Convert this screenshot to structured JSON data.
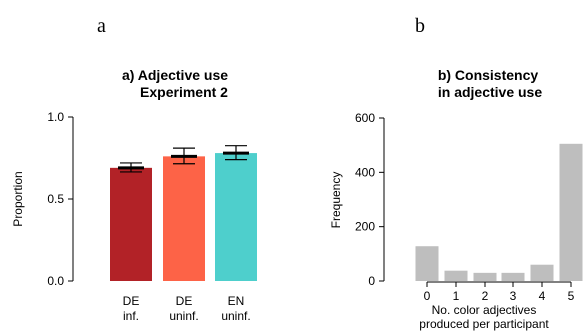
{
  "panel_labels": [
    "a",
    "b"
  ],
  "chart_data": [
    {
      "type": "bar",
      "title_lines": [
        "a) Adjective use",
        "Experiment 2"
      ],
      "ylabel": "Proportion",
      "ylim": [
        0,
        1
      ],
      "yticks": [
        "0.0",
        "0.5",
        "1.0"
      ],
      "yticks_values": [
        0,
        0.5,
        1
      ],
      "categories": [
        {
          "lines": [
            "DE",
            "inf."
          ],
          "value": 0.69,
          "err_low": 0.665,
          "err_high": 0.72,
          "color": "#b22227"
        },
        {
          "lines": [
            "DE",
            "uninf."
          ],
          "value": 0.76,
          "err_low": 0.715,
          "err_high": 0.81,
          "color": "#fd6347"
        },
        {
          "lines": [
            "EN",
            "uninf."
          ],
          "value": 0.78,
          "err_low": 0.74,
          "err_high": 0.825,
          "color": "#4ecfcc"
        }
      ]
    },
    {
      "type": "bar",
      "title_lines": [
        "b) Consistency",
        "in adjective use"
      ],
      "ylabel": "Frequency",
      "xlabel_lines": [
        "No. color adjectives",
        "produced per participant"
      ],
      "ylim": [
        0,
        600
      ],
      "yticks": [
        "0",
        "200",
        "400",
        "600"
      ],
      "yticks_values": [
        0,
        200,
        400,
        600
      ],
      "categories": [
        "0",
        "1",
        "2",
        "3",
        "4",
        "5"
      ],
      "values": [
        128,
        38,
        30,
        30,
        60,
        505
      ],
      "color": "#bebebe"
    }
  ]
}
